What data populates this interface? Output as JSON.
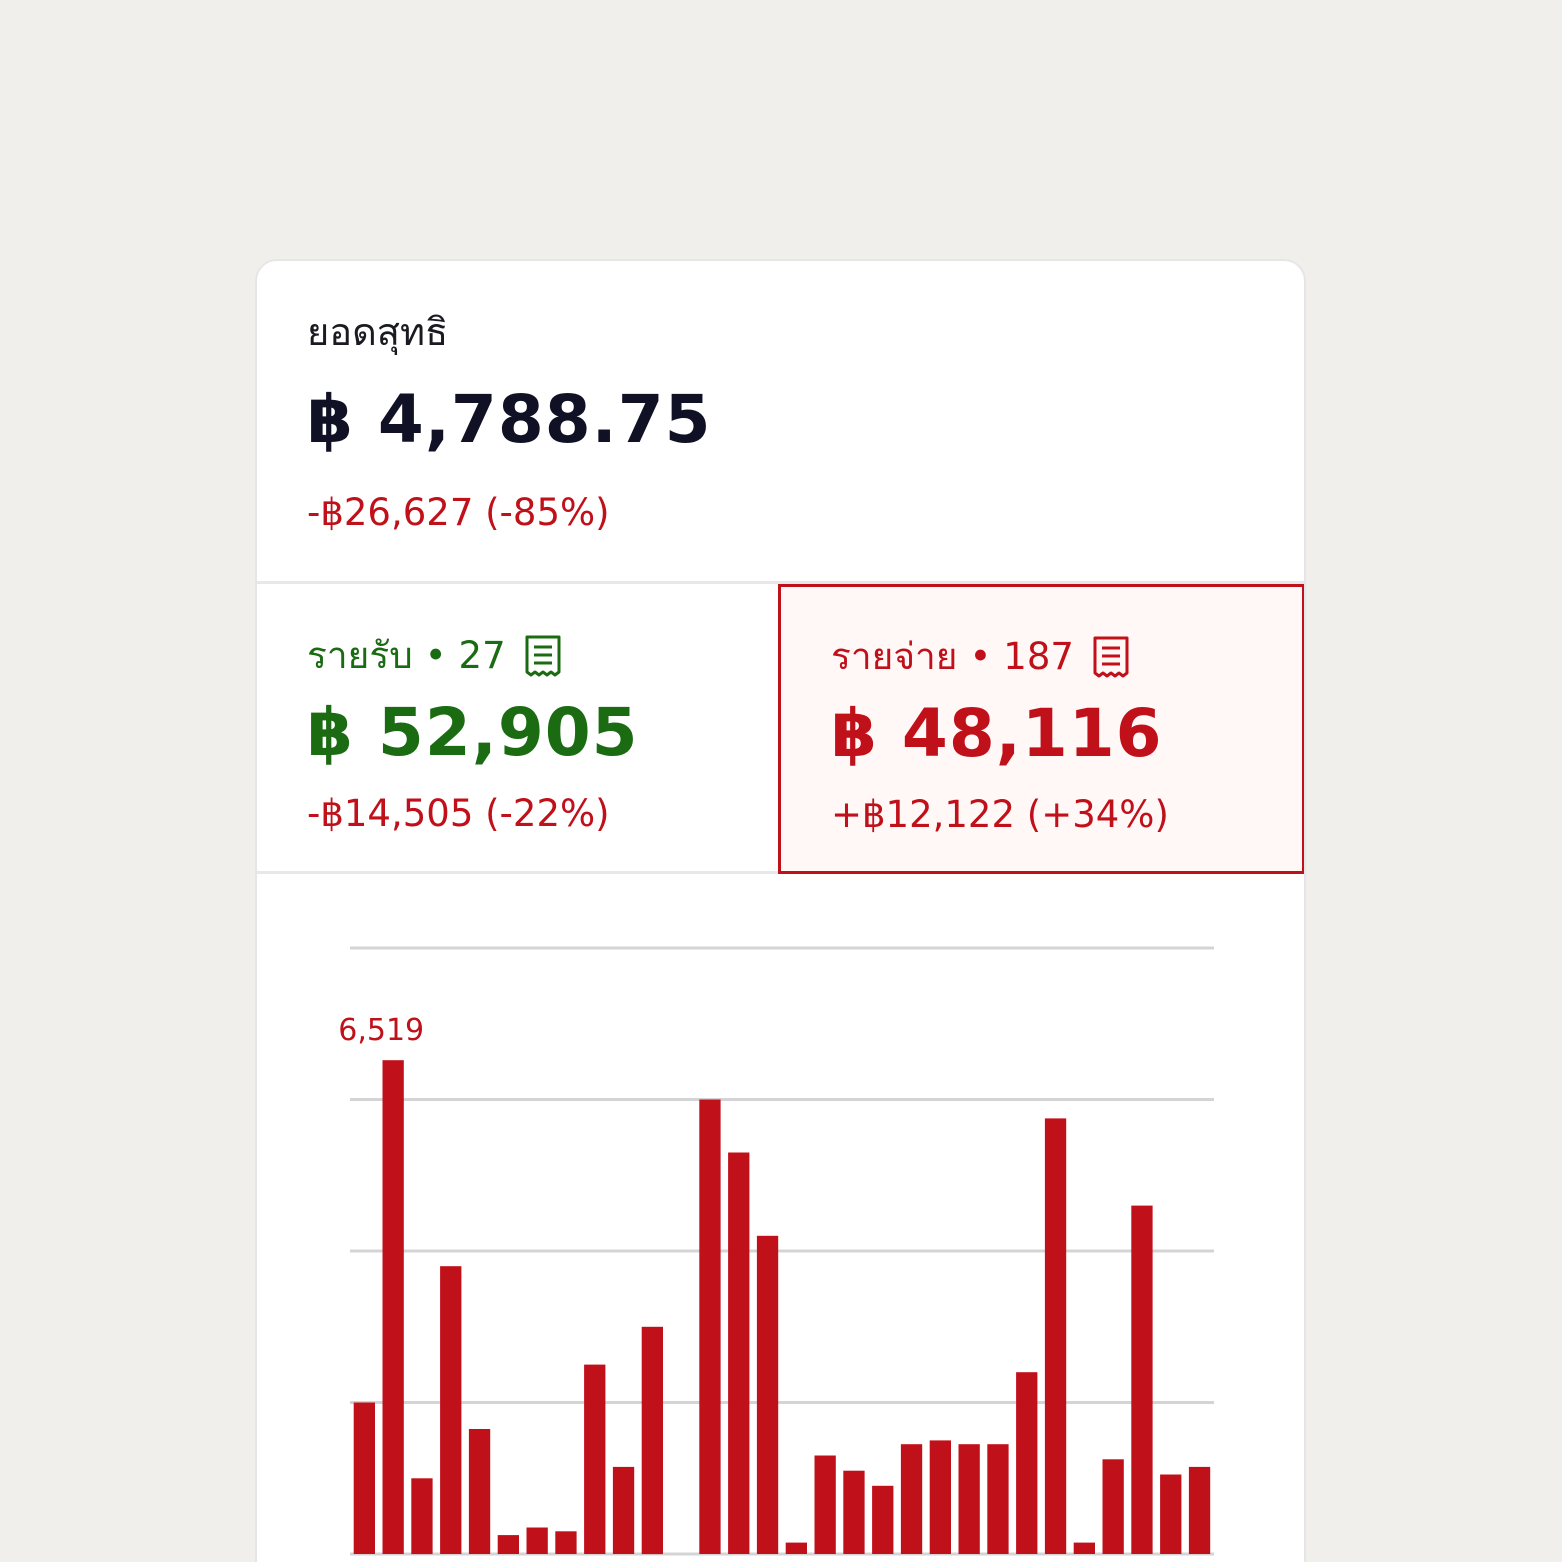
{
  "net": {
    "label": "ยอดสุทธิ",
    "value": "฿ 4,788.75",
    "change": "-฿26,627 (-85%)"
  },
  "income": {
    "label": "รายรับ",
    "separator": "•",
    "count": "27",
    "icon": "receipt-icon",
    "value": "฿ 52,905",
    "change": "-฿14,505 (-22%)"
  },
  "expense": {
    "label": "รายจ่าย",
    "separator": "•",
    "count": "187",
    "icon": "receipt-icon",
    "value": "฿ 48,116",
    "change": "+฿12,122 (+34%)"
  },
  "colors": {
    "income": "#1a6b12",
    "expense": "#c0101a",
    "grid": "#d4d4d6"
  },
  "chart_data": {
    "type": "bar",
    "series": [
      {
        "values": [
          2000,
          6519,
          1000,
          3800,
          1650,
          250,
          350,
          300,
          2500,
          1150,
          3000,
          null,
          6000,
          5300,
          4200,
          150,
          1300,
          1100,
          900,
          1450,
          1500,
          1450,
          1450,
          2400,
          5750,
          150,
          1250,
          4600,
          1050,
          1150
        ]
      }
    ],
    "max_label": "6,519",
    "gridlines": 5,
    "ylim": [
      0,
      8000
    ]
  }
}
